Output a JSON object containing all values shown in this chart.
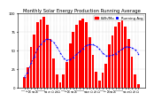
{
  "title": "Monthly Solar Energy Production Running Average",
  "bar_color": "#ff0000",
  "avg_line_color": "#0000ff",
  "bg_color": "#ffffff",
  "grid_color": "#aaaaaa",
  "ylabel_color": "#000000",
  "months_labels": [
    "J",
    "F",
    "M",
    "A",
    "M",
    "J",
    "J",
    "A",
    "S",
    "O",
    "N",
    "D",
    "J",
    "F",
    "M",
    "A",
    "M",
    "J",
    "J",
    "A",
    "S",
    "O",
    "N",
    "D",
    "J",
    "F",
    "M",
    "A",
    "M",
    "J",
    "J",
    "A",
    "S",
    "O",
    "N",
    "D"
  ],
  "values": [
    15,
    28,
    55,
    72,
    88,
    92,
    95,
    85,
    65,
    40,
    18,
    8,
    18,
    35,
    60,
    75,
    85,
    90,
    93,
    88,
    68,
    44,
    22,
    10,
    20,
    32,
    58,
    70,
    82,
    88,
    91,
    82,
    65,
    42,
    18,
    5
  ],
  "running_avg": [
    15,
    21,
    33,
    42,
    52,
    58,
    63,
    66,
    64,
    61,
    55,
    47,
    40,
    37,
    38,
    41,
    45,
    49,
    53,
    57,
    58,
    58,
    56,
    52,
    47,
    43,
    43,
    44,
    46,
    49,
    52,
    55,
    55,
    54,
    51,
    46
  ],
  "ylim": [
    0,
    100
  ],
  "yticks": [
    0,
    25,
    50,
    75,
    100
  ],
  "title_fontsize": 3.8,
  "tick_fontsize": 2.8,
  "legend_fontsize": 2.8,
  "legend_label_bar": "kWh/Mo",
  "legend_label_avg": "Running Avg"
}
